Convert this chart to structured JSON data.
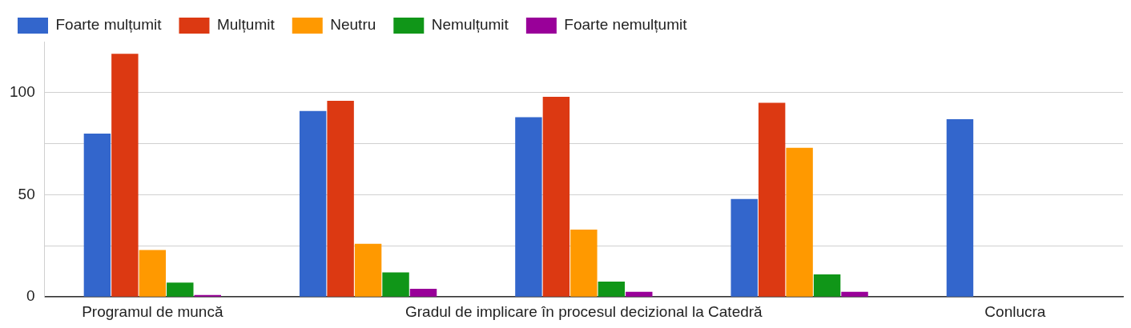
{
  "chart_data": {
    "type": "bar",
    "categories": [
      "Programul de muncă",
      null,
      "Gradul de implicare în procesul decizional la Catedră",
      null,
      "Conlucra"
    ],
    "series": [
      {
        "name": "Foarte mulțumit",
        "color": "#3366cc",
        "values": [
          80,
          91,
          88,
          48,
          87
        ]
      },
      {
        "name": "Mulțumit",
        "color": "#dc3912",
        "values": [
          119,
          96,
          98,
          95,
          null
        ]
      },
      {
        "name": "Neutru",
        "color": "#ff9900",
        "values": [
          23,
          26,
          33,
          73,
          null
        ]
      },
      {
        "name": "Nemulțumit",
        "color": "#109618",
        "values": [
          7,
          12,
          7.5,
          11,
          null
        ]
      },
      {
        "name": "Foarte nemulțumit",
        "color": "#990099",
        "values": [
          1,
          4,
          2.5,
          2.5,
          null
        ]
      }
    ],
    "ylim": [
      0,
      125
    ],
    "yticks": [
      0,
      {
        "value": 25,
        "label": null
      },
      50,
      {
        "value": 75,
        "label": null
      },
      100
    ],
    "grid": "y",
    "legend": "top left"
  }
}
